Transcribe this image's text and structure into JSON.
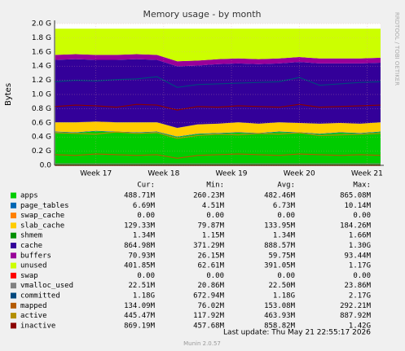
{
  "chart_data": {
    "type": "stacked-area",
    "title": "Memory usage - by month",
    "y_label": "Bytes",
    "watermark": "RRDTOOL / TOBI OETIKER",
    "footer": "Munin 2.0.57",
    "last_update": "Last update: Thu May 21 22:55:17 2026",
    "columns": [
      "Cur:",
      "Min:",
      "Avg:",
      "Max:"
    ],
    "grid": true,
    "xlim": [
      16.39,
      21.2
    ],
    "ylim": [
      0,
      2.0
    ],
    "xticks": [
      {
        "value": 17,
        "label": "Week 17"
      },
      {
        "value": 18,
        "label": "Week 18"
      },
      {
        "value": 19,
        "label": "Week 19"
      },
      {
        "value": 20,
        "label": "Week 20"
      },
      {
        "value": 21,
        "label": "Week 21"
      }
    ],
    "yticks": [
      {
        "value": 0,
        "label": "0.0"
      },
      {
        "value": 0.2,
        "label": "0.2 G"
      },
      {
        "value": 0.4,
        "label": "0.4 G"
      },
      {
        "value": 0.6,
        "label": "0.6 G"
      },
      {
        "value": 0.8,
        "label": "0.8 G"
      },
      {
        "value": 1.0,
        "label": "1.0 G"
      },
      {
        "value": 1.2,
        "label": "1.2 G"
      },
      {
        "value": 1.4,
        "label": "1.4 G"
      },
      {
        "value": 1.6,
        "label": "1.6 G"
      },
      {
        "value": 1.8,
        "label": "1.8 G"
      },
      {
        "value": 2.0,
        "label": "2.0 G"
      }
    ],
    "x": [
      16.4,
      16.7,
      17.0,
      17.3,
      17.6,
      17.9,
      18.2,
      18.5,
      18.8,
      19.1,
      19.4,
      19.7,
      20.0,
      20.3,
      20.6,
      20.9,
      21.2
    ],
    "series": [
      {
        "name": "apps",
        "color": "#00cc00",
        "kind": "area",
        "cur": "488.71M",
        "min": "260.23M",
        "avg": "482.46M",
        "max": "865.08M",
        "values": [
          0.47,
          0.46,
          0.48,
          0.47,
          0.46,
          0.47,
          0.4,
          0.44,
          0.45,
          0.46,
          0.45,
          0.47,
          0.46,
          0.44,
          0.46,
          0.45,
          0.47
        ]
      },
      {
        "name": "page_tables",
        "color": "#0066b3",
        "kind": "area",
        "cur": "6.69M",
        "min": "4.51M",
        "avg": "6.73M",
        "max": "10.14M",
        "values": [
          0.007,
          0.007,
          0.007,
          0.007,
          0.007,
          0.007,
          0.007,
          0.007,
          0.007,
          0.007,
          0.007,
          0.007,
          0.007,
          0.007,
          0.007,
          0.007,
          0.007
        ]
      },
      {
        "name": "swap_cache",
        "color": "#ff8000",
        "kind": "area",
        "cur": "0.00",
        "min": "0.00",
        "avg": "0.00",
        "max": "0.00",
        "values": [
          0,
          0,
          0,
          0,
          0,
          0,
          0,
          0,
          0,
          0,
          0,
          0,
          0,
          0,
          0,
          0,
          0
        ]
      },
      {
        "name": "slab_cache",
        "color": "#ffcc00",
        "kind": "area",
        "cur": "129.33M",
        "min": "79.87M",
        "avg": "133.95M",
        "max": "184.26M",
        "values": [
          0.13,
          0.14,
          0.13,
          0.13,
          0.14,
          0.13,
          0.12,
          0.13,
          0.13,
          0.14,
          0.13,
          0.13,
          0.13,
          0.14,
          0.13,
          0.13,
          0.13
        ]
      },
      {
        "name": "shmem",
        "color": "#008f00",
        "kind": "area",
        "cur": "1.34M",
        "min": "1.15M",
        "avg": "1.34M",
        "max": "1.66M",
        "values": [
          0.0013,
          0.0013,
          0.0013,
          0.0013,
          0.0013,
          0.0013,
          0.0013,
          0.0013,
          0.0013,
          0.0013,
          0.0013,
          0.0013,
          0.0013,
          0.0013,
          0.0013,
          0.0013,
          0.0013
        ]
      },
      {
        "name": "cache",
        "color": "#330099",
        "kind": "area",
        "cur": "864.98M",
        "min": "371.29M",
        "avg": "888.57M",
        "max": "1.30G",
        "values": [
          0.88,
          0.89,
          0.87,
          0.88,
          0.89,
          0.88,
          0.87,
          0.83,
          0.84,
          0.83,
          0.84,
          0.83,
          0.86,
          0.85,
          0.84,
          0.85,
          0.84
        ]
      },
      {
        "name": "buffers",
        "color": "#990099",
        "kind": "area",
        "cur": "70.93M",
        "min": "26.15M",
        "avg": "59.75M",
        "max": "93.44M",
        "values": [
          0.07,
          0.07,
          0.07,
          0.07,
          0.07,
          0.07,
          0.07,
          0.07,
          0.07,
          0.07,
          0.07,
          0.07,
          0.07,
          0.07,
          0.07,
          0.07,
          0.07
        ]
      },
      {
        "name": "unused",
        "color": "#ccff00",
        "kind": "area",
        "cur": "401.85M",
        "min": "62.61M",
        "avg": "391.05M",
        "max": "1.17G",
        "values": [
          0.37,
          0.36,
          0.37,
          0.37,
          0.36,
          0.37,
          0.46,
          0.45,
          0.43,
          0.42,
          0.43,
          0.42,
          0.4,
          0.42,
          0.42,
          0.42,
          0.41
        ]
      },
      {
        "name": "swap",
        "color": "#ff0000",
        "kind": "line",
        "cur": "0.00",
        "min": "0.00",
        "avg": "0.00",
        "max": "0.00",
        "values": [
          0,
          0,
          0,
          0,
          0,
          0,
          0,
          0,
          0,
          0,
          0,
          0,
          0,
          0,
          0,
          0,
          0
        ]
      },
      {
        "name": "vmalloc_used",
        "color": "#808080",
        "kind": "line",
        "cur": "22.51M",
        "min": "20.86M",
        "avg": "22.50M",
        "max": "23.86M",
        "values": [
          0.021,
          0.021,
          0.021,
          0.021,
          0.021,
          0.021,
          0.021,
          0.021,
          0.021,
          0.021,
          0.021,
          0.021,
          0.021,
          0.021,
          0.021,
          0.021,
          0.021
        ]
      },
      {
        "name": "committed",
        "color": "#00487d",
        "kind": "line",
        "cur": "1.18G",
        "min": "672.94M",
        "avg": "1.18G",
        "max": "2.17G",
        "values": [
          1.18,
          1.2,
          1.19,
          1.21,
          1.22,
          1.25,
          1.1,
          1.14,
          1.15,
          1.16,
          1.17,
          1.18,
          1.24,
          1.13,
          1.15,
          1.17,
          1.18
        ]
      },
      {
        "name": "mapped",
        "color": "#b35a00",
        "kind": "line",
        "cur": "134.09M",
        "min": "76.02M",
        "avg": "153.08M",
        "max": "292.21M",
        "values": [
          0.15,
          0.14,
          0.16,
          0.15,
          0.14,
          0.15,
          0.1,
          0.14,
          0.15,
          0.16,
          0.15,
          0.14,
          0.16,
          0.15,
          0.14,
          0.15,
          0.14
        ]
      },
      {
        "name": "active",
        "color": "#b38f00",
        "kind": "line",
        "cur": "445.47M",
        "min": "117.92M",
        "avg": "463.93M",
        "max": "887.92M",
        "values": [
          0.46,
          0.45,
          0.44,
          0.47,
          0.45,
          0.46,
          0.38,
          0.42,
          0.44,
          0.43,
          0.45,
          0.44,
          0.46,
          0.42,
          0.43,
          0.44,
          0.45
        ]
      },
      {
        "name": "inactive",
        "color": "#8b0000",
        "kind": "line",
        "cur": "869.19M",
        "min": "457.68M",
        "avg": "858.82M",
        "max": "1.42G",
        "values": [
          0.83,
          0.85,
          0.84,
          0.82,
          0.86,
          0.85,
          0.78,
          0.83,
          0.82,
          0.84,
          0.83,
          0.82,
          0.86,
          0.82,
          0.83,
          0.84,
          0.85
        ]
      }
    ]
  }
}
